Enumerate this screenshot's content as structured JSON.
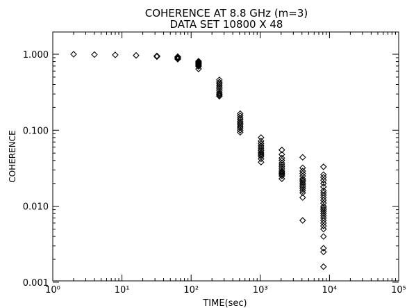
{
  "chart_data": {
    "type": "scatter",
    "title": "COHERENCE AT 8.8 GHz   (m=3)",
    "subtitle": "DATA SET   10800  X   48",
    "xlabel": "TIME(sec)",
    "ylabel": "COHERENCE",
    "x_scale": "log",
    "y_scale": "log",
    "xlim": [
      1,
      100000
    ],
    "ylim": [
      0.001,
      3
    ],
    "x_tick_labels": [
      "10⁰",
      "10¹",
      "10²",
      "10³",
      "10⁴",
      "10⁵"
    ],
    "y_tick_labels": [
      "1.000",
      "0.100",
      "0.010",
      "0.001"
    ],
    "marker": "diamond",
    "grid": false,
    "groups": [
      {
        "x": 2,
        "y": [
          1.0
        ]
      },
      {
        "x": 4,
        "y": [
          0.99
        ]
      },
      {
        "x": 8,
        "y": [
          0.98
        ]
      },
      {
        "x": 16,
        "y": [
          0.965
        ]
      },
      {
        "x": 32,
        "y": [
          0.95,
          0.94,
          0.93
        ]
      },
      {
        "x": 64,
        "y": [
          0.93,
          0.91,
          0.9,
          0.88,
          0.86
        ]
      },
      {
        "x": 128,
        "y": [
          0.81,
          0.79,
          0.77,
          0.75,
          0.73,
          0.71,
          0.69,
          0.64
        ]
      },
      {
        "x": 256,
        "y": [
          0.46,
          0.43,
          0.41,
          0.39,
          0.37,
          0.35,
          0.33,
          0.31,
          0.3,
          0.29,
          0.28
        ]
      },
      {
        "x": 512,
        "y": [
          0.165,
          0.155,
          0.145,
          0.138,
          0.13,
          0.124,
          0.118,
          0.112,
          0.107,
          0.1,
          0.094
        ]
      },
      {
        "x": 1024,
        "y": [
          0.08,
          0.072,
          0.067,
          0.063,
          0.06,
          0.057,
          0.054,
          0.051,
          0.049,
          0.047,
          0.045,
          0.042,
          0.038
        ]
      },
      {
        "x": 2048,
        "y": [
          0.055,
          0.048,
          0.043,
          0.04,
          0.037,
          0.035,
          0.033,
          0.031,
          0.029,
          0.028,
          0.027,
          0.026,
          0.025,
          0.023
        ]
      },
      {
        "x": 4096,
        "y": [
          0.044,
          0.032,
          0.029,
          0.027,
          0.025,
          0.023,
          0.022,
          0.021,
          0.02,
          0.019,
          0.018,
          0.017,
          0.016,
          0.015,
          0.013,
          0.0065
        ]
      },
      {
        "x": 8192,
        "y": [
          0.033,
          0.026,
          0.024,
          0.022,
          0.02,
          0.018,
          0.016,
          0.015,
          0.014,
          0.013,
          0.012,
          0.011,
          0.01,
          0.0095,
          0.009,
          0.0085,
          0.008,
          0.0075,
          0.007,
          0.0065,
          0.006,
          0.0055,
          0.005,
          0.004,
          0.0028,
          0.0025,
          0.0016
        ]
      }
    ]
  }
}
